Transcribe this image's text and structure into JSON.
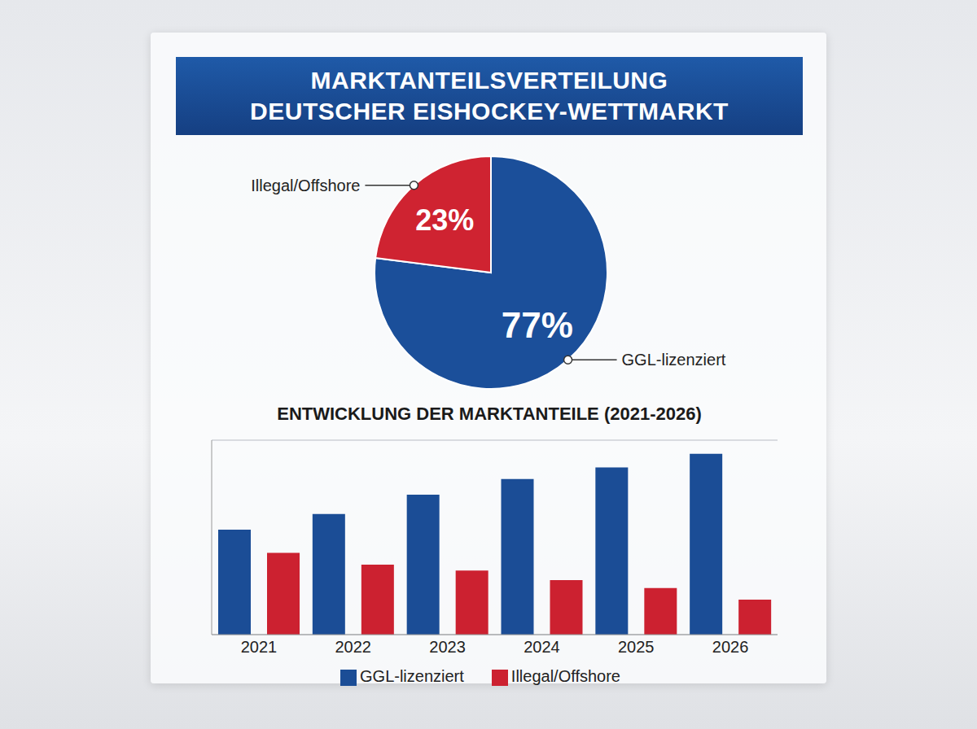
{
  "chart_data": [
    {
      "type": "pie",
      "title": "MARKTANTEILSVERTEILUNG\nDEUTSCHER EISHOCKEY-WETTMARKT",
      "categories": [
        "GGL-lizenziert",
        "Illegal/Offshore"
      ],
      "values": [
        77,
        23
      ],
      "value_labels": [
        "77%",
        "23%"
      ],
      "colors": [
        "#1b4f9a",
        "#cf2331"
      ],
      "data_labels": true
    },
    {
      "type": "bar",
      "title": "ENTWICKLUNG DER MARKTANTEILE (2021-2026)",
      "categories": [
        "2021",
        "2022",
        "2023",
        "2024",
        "2025",
        "2026"
      ],
      "series": [
        {
          "name": "GGL-lizenziert",
          "color": "#1b4d96",
          "values": [
            54,
            62,
            72,
            80,
            86,
            93
          ]
        },
        {
          "name": "Illegal/Offshore",
          "color": "#cc2130",
          "values": [
            42,
            36,
            33,
            28,
            24,
            18
          ]
        }
      ],
      "ylim": [
        0,
        100
      ],
      "yticks": [
        0,
        20,
        40,
        60,
        80,
        100
      ],
      "grid": true,
      "tick_labels": "x",
      "legend": "bottom"
    }
  ]
}
